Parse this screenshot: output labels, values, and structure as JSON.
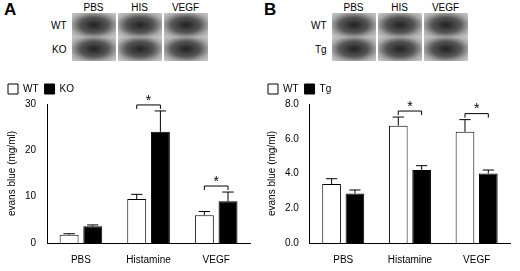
{
  "chart_data": [
    {
      "type": "bar",
      "panel": "A",
      "image_columns": [
        "PBS",
        "HIS",
        "VEGF"
      ],
      "image_rows": [
        "WT",
        "KO"
      ],
      "y_label": "evans blue (mg/ml)",
      "categories": [
        "PBS",
        "Histamine",
        "VEGF"
      ],
      "series": [
        {
          "name": "WT",
          "color": "#ffffff",
          "values": [
            1.8,
            9.5,
            6.0
          ],
          "errors": [
            0.2,
            1.0,
            0.8
          ]
        },
        {
          "name": "KO",
          "color": "#000000",
          "values": [
            3.6,
            24.0,
            9.0
          ],
          "errors": [
            0.3,
            4.5,
            2.0
          ]
        }
      ],
      "significance": [
        {
          "category": "Histamine",
          "label": "*"
        },
        {
          "category": "VEGF",
          "label": "*"
        }
      ],
      "ylim": [
        0,
        30
      ],
      "yticks": [
        0,
        10,
        20,
        30
      ],
      "grid": false,
      "legend": "upper left"
    },
    {
      "type": "bar",
      "panel": "B",
      "image_columns": [
        "PBS",
        "HIS",
        "VEGF"
      ],
      "image_rows": [
        "WT",
        "Tg"
      ],
      "y_label": "evans blue (mg/ml)",
      "categories": [
        "PBS",
        "Histamine",
        "VEGF"
      ],
      "series": [
        {
          "name": "WT",
          "color": "#ffffff",
          "values": [
            3.4,
            6.75,
            6.4
          ],
          "errors": [
            0.3,
            0.5,
            0.7
          ]
        },
        {
          "name": "Tg",
          "color": "#000000",
          "values": [
            2.85,
            4.2,
            4.0
          ],
          "errors": [
            0.2,
            0.25,
            0.2
          ]
        }
      ],
      "significance": [
        {
          "category": "Histamine",
          "label": "*"
        },
        {
          "category": "VEGF",
          "label": "*"
        }
      ],
      "ylim": [
        0,
        8
      ],
      "yticks": [
        {
          "value": 0,
          "label": "0.0"
        },
        {
          "value": 2,
          "label": "2.0"
        },
        {
          "value": 4,
          "label": "4.0"
        },
        {
          "value": 6,
          "label": "6.0"
        },
        {
          "value": 8,
          "label": "8.0"
        }
      ],
      "grid": false,
      "legend": "upper left"
    }
  ]
}
